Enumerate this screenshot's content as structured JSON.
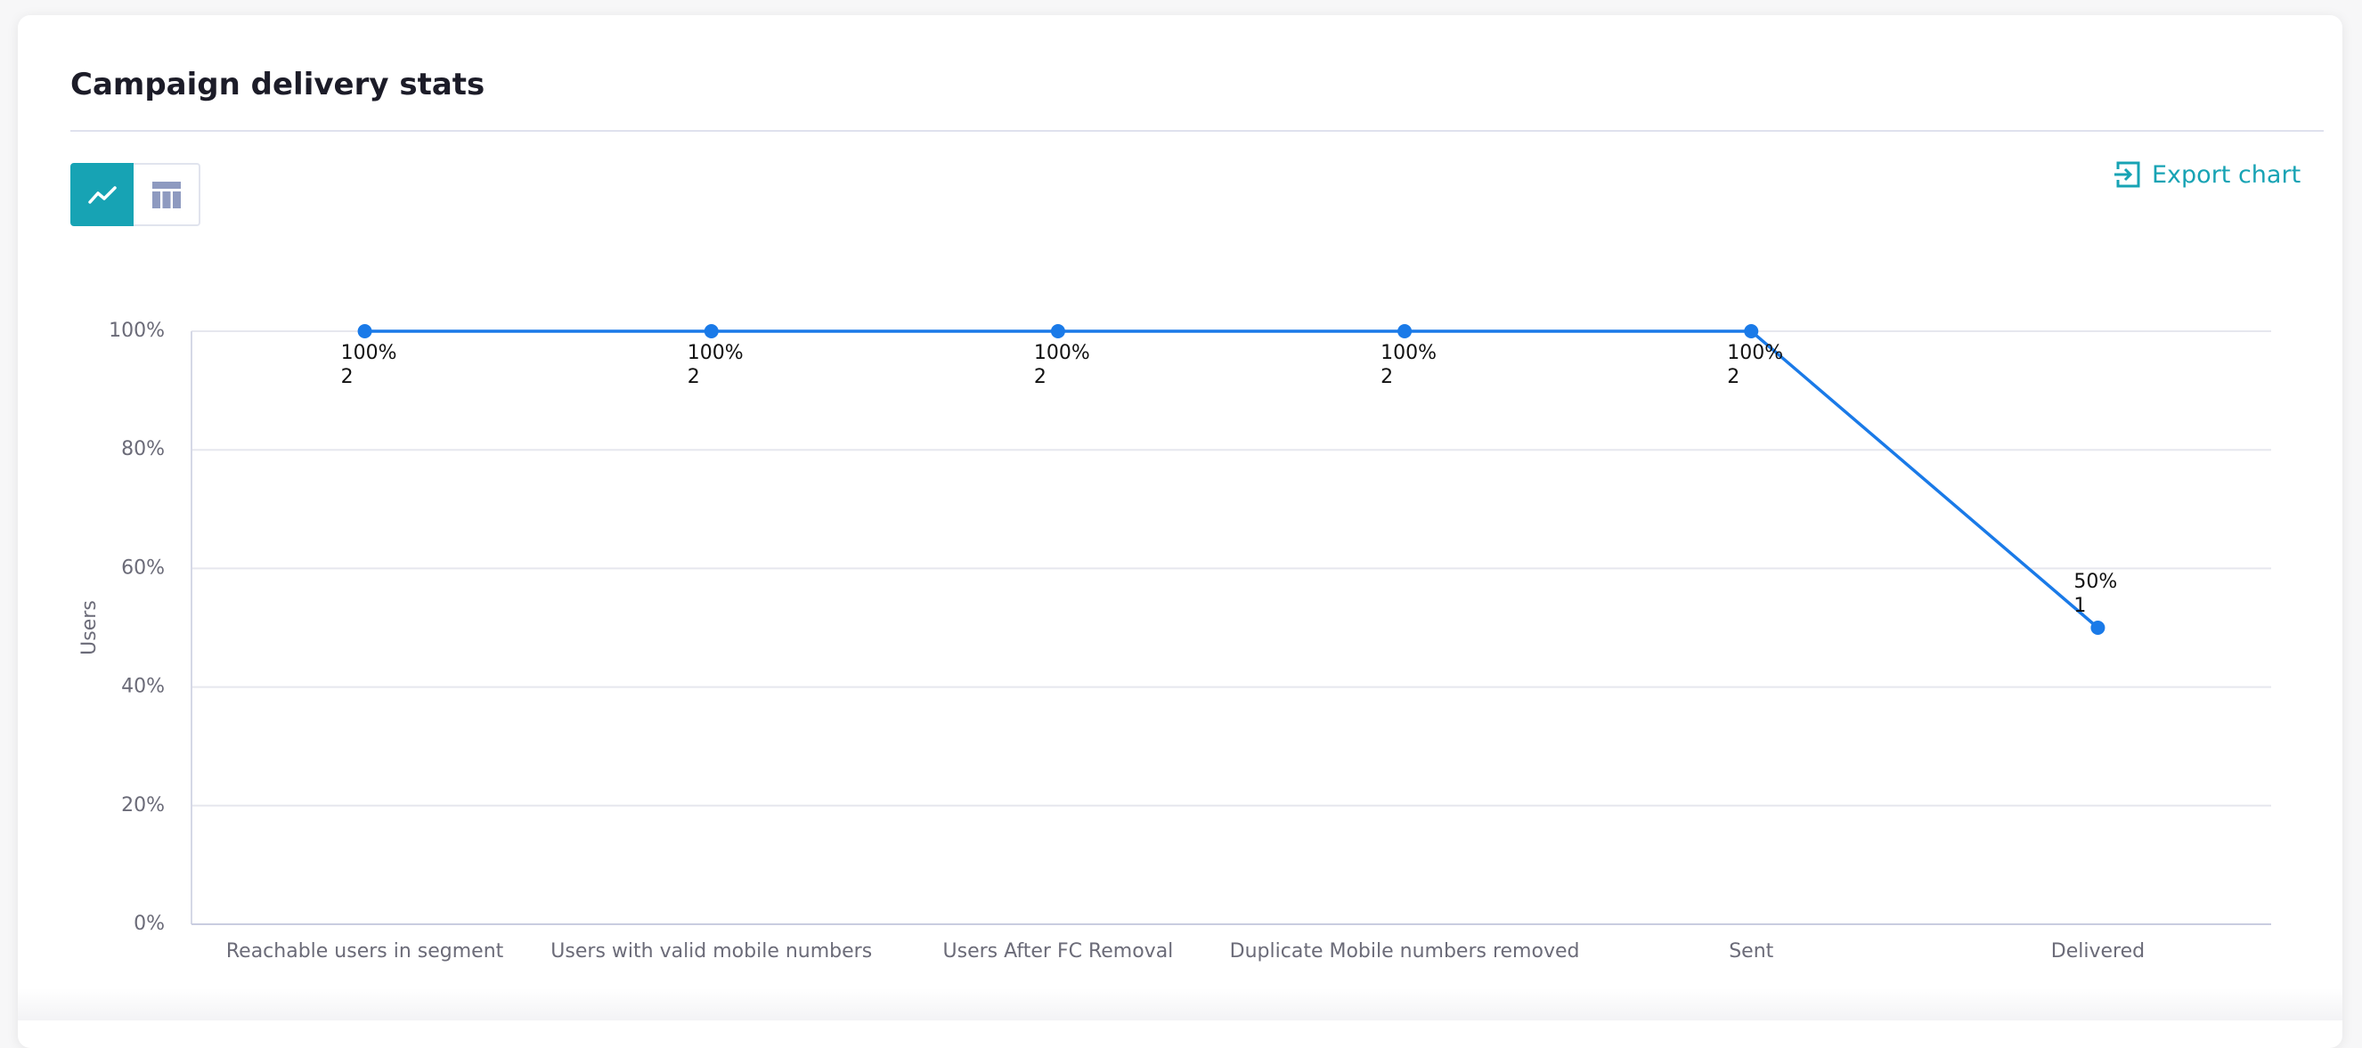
{
  "chart_data": {
    "type": "line",
    "title": "Campaign delivery stats",
    "categories": [
      "Reachable users in segment",
      "Users with valid mobile numbers",
      "Users After FC Removal",
      "Duplicate Mobile numbers removed",
      "Sent",
      "Delivered"
    ],
    "ylabel": "Users",
    "series": [
      {
        "color": "#1a7ae8",
        "values": [
          100,
          100,
          100,
          100,
          100,
          50
        ],
        "value_labels": [
          "100%",
          "100%",
          "100%",
          "100%",
          "100%",
          "50%"
        ],
        "counts": [
          2,
          2,
          2,
          2,
          2,
          1
        ]
      }
    ],
    "ylim": [
      0,
      100
    ],
    "yticks": [
      {
        "value": 0,
        "label": "0%"
      },
      {
        "value": 20,
        "label": "20%"
      },
      {
        "value": 40,
        "label": "40%"
      },
      {
        "value": 60,
        "label": "60%"
      },
      {
        "value": 80,
        "label": "80%"
      },
      {
        "value": 100,
        "label": "100%"
      }
    ],
    "grid": true
  },
  "toolbar": {
    "export": "Export chart"
  }
}
